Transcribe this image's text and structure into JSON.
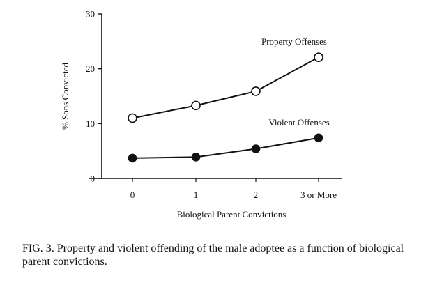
{
  "chart_data": {
    "type": "line",
    "title": "",
    "xlabel": "Biological Parent Convictions",
    "ylabel": "% Sons Convicted",
    "categories": [
      "0",
      "1",
      "2",
      "3 or More"
    ],
    "ylim": [
      0,
      30
    ],
    "yticks": [
      "0",
      "10",
      "20",
      "30"
    ],
    "grid": false,
    "series": [
      {
        "name": "Property Offenses",
        "values": [
          11,
          13.3,
          15.9,
          22.1
        ],
        "marker": "open-circle",
        "color": "#111111"
      },
      {
        "name": "Violent Offenses",
        "values": [
          3.7,
          3.9,
          5.4,
          7.4
        ],
        "marker": "filled-circle",
        "color": "#111111"
      }
    ]
  },
  "caption": {
    "text": "FIG. 3.   Property and violent offending of the male adoptee as a function of biological parent convictions."
  }
}
